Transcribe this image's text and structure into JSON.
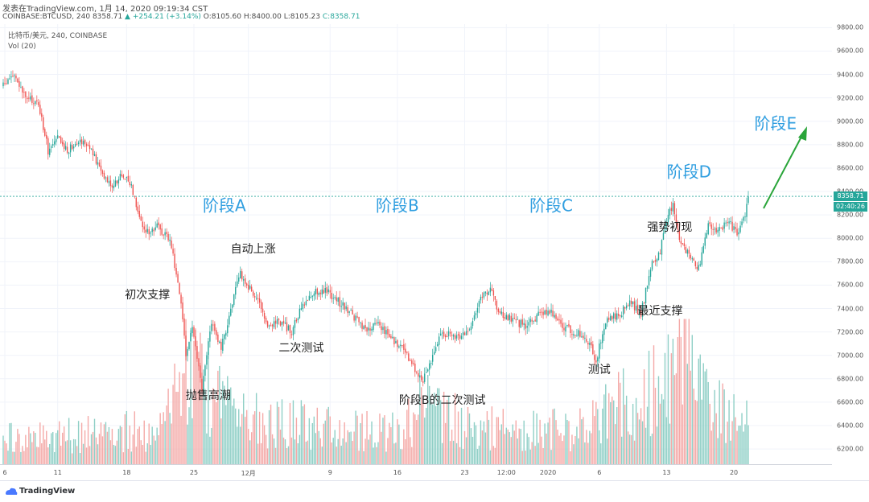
{
  "header": {
    "published": "发表在TradingView.com, 1月 14, 2020 09:19:34 CST",
    "symbol": "COINBASE:BTCUSD, 240",
    "last": "8358.71",
    "change_arrow": "▲",
    "change": "+254.21 (+3.14%)",
    "open": "O:8105.60",
    "high": "H:8400.00",
    "low": "L:8105.23",
    "close": "C:8358.71"
  },
  "legend": {
    "series_title": "比特币/美元, 240, COINBASE",
    "volume_title": "Vol (20)"
  },
  "price_tag": {
    "price": "8358.71",
    "countdown": "02:40:26",
    "color": "#26a69a"
  },
  "footer": {
    "brand": "TradingView"
  },
  "colors": {
    "up": "#26a69a",
    "down": "#ef5350",
    "up_volume": "#8fcfc6",
    "down_volume": "#f4a9a7",
    "annotation_blue": "#2f9ee0",
    "arrow": "#2aa53a"
  },
  "annotations": {
    "phase_a": "阶段A",
    "phase_b": "阶段B",
    "phase_c": "阶段C",
    "phase_d": "阶段D",
    "phase_e": "阶段E",
    "ps": "初次支撑",
    "sc": "抛售高潮",
    "ar": "自动上涨",
    "st": "二次测试",
    "st_b": "阶段B的二次测试",
    "test": "测试",
    "lps": "最近支撑",
    "sos": "强势初现"
  },
  "chart_data": {
    "type": "candlestick",
    "symbol": "COINBASE:BTCUSD",
    "interval": "240",
    "y_ticks": [
      6200,
      6400,
      6600,
      6800,
      7000,
      7200,
      7400,
      7600,
      7800,
      8000,
      8200,
      8400,
      8600,
      8800,
      9000,
      9200,
      9400,
      9600,
      9800
    ],
    "y_tick_labels": [
      "6200.00",
      "6400.00",
      "6600.00",
      "6800.00",
      "7000.00",
      "7200.00",
      "7400.00",
      "7600.00",
      "7800.00",
      "8000.00",
      "8200.00",
      "8400.00",
      "8600.00",
      "8800.00",
      "9000.00",
      "9200.00",
      "9400.00",
      "9600.00",
      "9800.00"
    ],
    "ylim": [
      6070,
      9830
    ],
    "x_tick_labels": [
      "6",
      "11",
      "18",
      "25",
      "12月",
      "9",
      "16",
      "23",
      "12:00",
      "2020",
      "6",
      "13",
      "20"
    ],
    "x_tick_index": [
      1,
      34,
      77,
      119,
      153,
      204,
      246,
      288,
      314,
      340,
      372,
      414,
      456
    ],
    "bar_count": 466,
    "last_price": 8358.71,
    "price_path": [
      [
        0,
        9300
      ],
      [
        6,
        9400
      ],
      [
        14,
        9200
      ],
      [
        22,
        9150
      ],
      [
        28,
        8750
      ],
      [
        34,
        8850
      ],
      [
        40,
        8750
      ],
      [
        47,
        8850
      ],
      [
        53,
        8800
      ],
      [
        60,
        8600
      ],
      [
        68,
        8450
      ],
      [
        75,
        8550
      ],
      [
        80,
        8450
      ],
      [
        88,
        8050
      ],
      [
        96,
        8100
      ],
      [
        104,
        8000
      ],
      [
        110,
        7550
      ],
      [
        114,
        7000
      ],
      [
        118,
        7250
      ],
      [
        124,
        6700
      ],
      [
        130,
        7300
      ],
      [
        136,
        7050
      ],
      [
        142,
        7400
      ],
      [
        148,
        7700
      ],
      [
        152,
        7600
      ],
      [
        158,
        7500
      ],
      [
        164,
        7250
      ],
      [
        172,
        7300
      ],
      [
        180,
        7200
      ],
      [
        186,
        7400
      ],
      [
        194,
        7550
      ],
      [
        202,
        7550
      ],
      [
        210,
        7450
      ],
      [
        218,
        7350
      ],
      [
        226,
        7200
      ],
      [
        234,
        7280
      ],
      [
        242,
        7150
      ],
      [
        250,
        7050
      ],
      [
        256,
        6900
      ],
      [
        262,
        6800
      ],
      [
        268,
        7000
      ],
      [
        274,
        7200
      ],
      [
        282,
        7150
      ],
      [
        290,
        7200
      ],
      [
        298,
        7500
      ],
      [
        304,
        7550
      ],
      [
        310,
        7350
      ],
      [
        318,
        7300
      ],
      [
        326,
        7250
      ],
      [
        334,
        7350
      ],
      [
        342,
        7380
      ],
      [
        348,
        7250
      ],
      [
        356,
        7200
      ],
      [
        364,
        7150
      ],
      [
        370,
        6950
      ],
      [
        376,
        7300
      ],
      [
        384,
        7350
      ],
      [
        392,
        7450
      ],
      [
        398,
        7350
      ],
      [
        404,
        7750
      ],
      [
        410,
        7900
      ],
      [
        414,
        8150
      ],
      [
        418,
        8300
      ],
      [
        422,
        8000
      ],
      [
        428,
        7850
      ],
      [
        434,
        7750
      ],
      [
        440,
        8100
      ],
      [
        446,
        8050
      ],
      [
        452,
        8150
      ],
      [
        458,
        8050
      ],
      [
        462,
        8150
      ],
      [
        465,
        8358.71
      ]
    ],
    "volume_profile": [
      [
        0,
        0.25
      ],
      [
        60,
        0.3
      ],
      [
        100,
        0.35
      ],
      [
        115,
        0.95
      ],
      [
        125,
        0.75
      ],
      [
        150,
        0.45
      ],
      [
        250,
        0.3
      ],
      [
        262,
        0.7
      ],
      [
        270,
        0.5
      ],
      [
        300,
        0.35
      ],
      [
        360,
        0.35
      ],
      [
        375,
        0.5
      ],
      [
        410,
        0.75
      ],
      [
        425,
        1.0
      ],
      [
        440,
        0.55
      ],
      [
        465,
        0.4
      ]
    ],
    "volume_max_share": 0.33
  }
}
